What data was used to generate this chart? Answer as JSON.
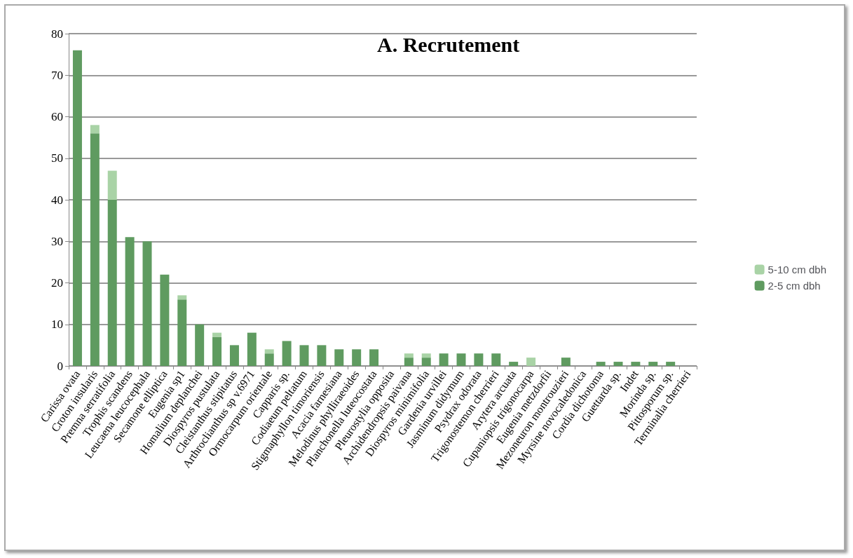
{
  "chart_data": {
    "type": "bar",
    "title": "A. Recrutement",
    "stacked": true,
    "grid": "y",
    "legend": "right",
    "categories": [
      "Carissa ovata",
      "Croton insularis",
      "Premna serratifolia",
      "Trophis scandens",
      "Leucaena leucocephala",
      "Secamone elliptica",
      "Eugenia sp1",
      "Homalium deplanchei",
      "Diospyros pustulata",
      "Cleistanthus stipitatus",
      "Arthroclianthus sp v.6971",
      "Ormocarpum orientale",
      "Capparis sp.",
      "Codiaeum peltatum",
      "Stigmaphyllon timoriensis",
      "Acacia farnesiana",
      "Melodinus phylliraeoides",
      "Planchonella luteocostata",
      "Pleurostylia opposita",
      "Archidendropsis paivana",
      "Diospyros minimifolia",
      "Gardenia urvillei",
      "Jasminum didymum",
      "Psydrax odorata",
      "Trigonostemon cherrieri",
      "Arytera arcuata",
      "Cupaniopsis trigonocarpa",
      "Eugenia metzdorfii",
      "Mezoneuron montrouzieri",
      "Myrsine novocaledonica",
      "Cordia dichotoma",
      "Guettarda sp.",
      "Indet",
      "Morinda sp.",
      "Pittosporum sp.",
      "Terminalia cherrieri"
    ],
    "series": [
      {
        "name": "2-5 cm dbh",
        "color": "#5f9b60",
        "values": [
          76,
          56,
          40,
          31,
          30,
          22,
          16,
          10,
          7,
          5,
          8,
          3,
          6,
          5,
          5,
          4,
          4,
          4,
          0,
          2,
          2,
          3,
          3,
          3,
          3,
          1,
          0,
          0,
          2,
          0,
          1,
          1,
          1,
          1,
          1,
          0
        ]
      },
      {
        "name": "5-10 cm dbh",
        "color": "#a9d3a6",
        "values": [
          0,
          2,
          7,
          0,
          0,
          0,
          1,
          0,
          1,
          0,
          0,
          1,
          0,
          0,
          0,
          0,
          0,
          0,
          0,
          1,
          1,
          0,
          0,
          0,
          0,
          0,
          2,
          0,
          0,
          0,
          0,
          0,
          0,
          0,
          0,
          0
        ]
      }
    ],
    "ylim": [
      0,
      80
    ],
    "yticks": [
      0,
      10,
      20,
      30,
      40,
      50,
      60,
      70,
      80
    ]
  }
}
